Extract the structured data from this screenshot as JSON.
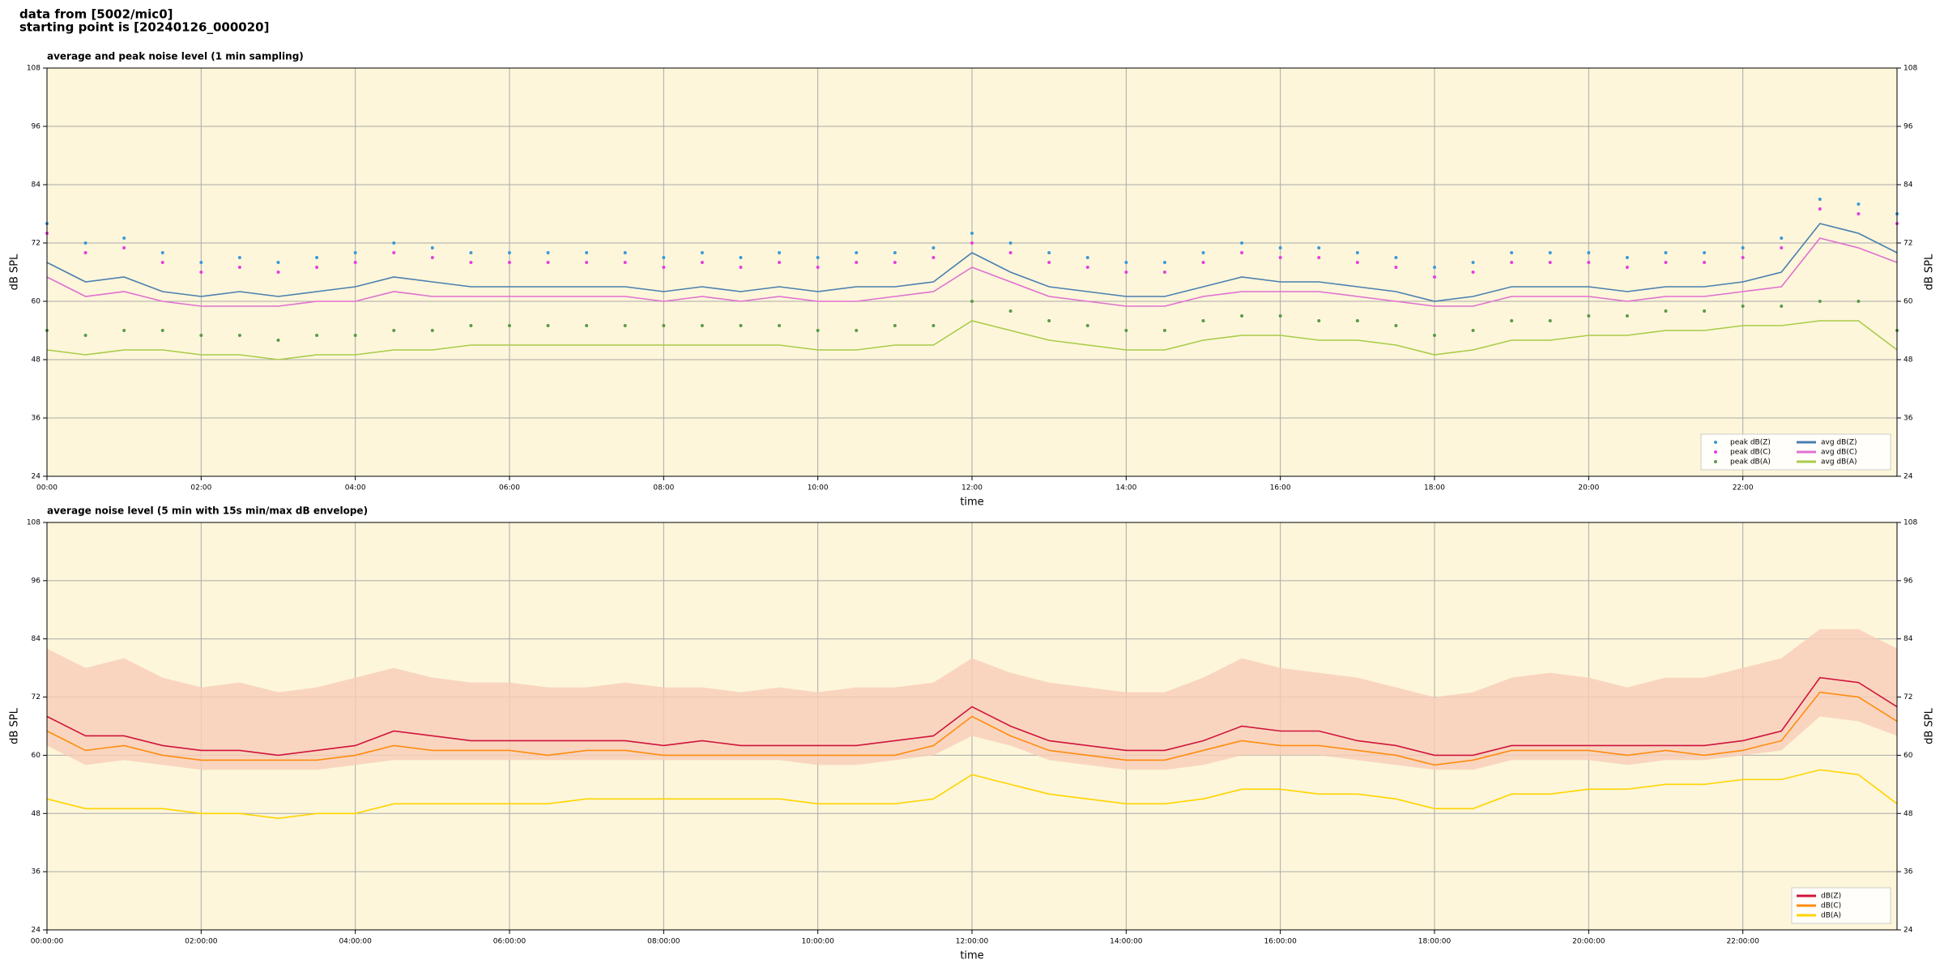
{
  "header": {
    "lines": [
      "data from [5002/mic0]",
      "starting point is [20240126_000020]"
    ]
  },
  "chart_data": [
    {
      "type": "line",
      "title": "average and peak noise level (1 min sampling)",
      "xlabel": "time",
      "ylabel": "dB SPL",
      "xlim": [
        0,
        24
      ],
      "ylim": [
        24,
        108
      ],
      "yticks": [
        24,
        36,
        48,
        60,
        72,
        84,
        96,
        108
      ],
      "xticks": [
        {
          "value": 0,
          "label": "00:00"
        },
        {
          "value": 2,
          "label": "02:00"
        },
        {
          "value": 4,
          "label": "04:00"
        },
        {
          "value": 6,
          "label": "06:00"
        },
        {
          "value": 8,
          "label": "08:00"
        },
        {
          "value": 10,
          "label": "10:00"
        },
        {
          "value": 12,
          "label": "12:00"
        },
        {
          "value": 14,
          "label": "14:00"
        },
        {
          "value": 16,
          "label": "16:00"
        },
        {
          "value": 18,
          "label": "18:00"
        },
        {
          "value": 20,
          "label": "20:00"
        },
        {
          "value": 22,
          "label": "22:00"
        }
      ],
      "grid": true,
      "legend": "lower right",
      "legend_columns": 2,
      "x": [
        0,
        0.5,
        1,
        1.5,
        2,
        2.5,
        3,
        3.5,
        4,
        4.5,
        5,
        5.5,
        6,
        6.5,
        7,
        7.5,
        8,
        8.5,
        9,
        9.5,
        10,
        10.5,
        11,
        11.5,
        12,
        12.5,
        13,
        13.5,
        14,
        14.5,
        15,
        15.5,
        16,
        16.5,
        17,
        17.5,
        18,
        18.5,
        19,
        19.5,
        20,
        20.5,
        21,
        21.5,
        22,
        22.5,
        23,
        23.5,
        24
      ],
      "series": [
        {
          "name": "peak dB(Z)",
          "color": "#3b9ad9",
          "marker": "dot",
          "values": [
            76,
            72,
            73,
            70,
            68,
            69,
            68,
            69,
            70,
            72,
            71,
            70,
            70,
            70,
            70,
            70,
            69,
            70,
            69,
            70,
            69,
            70,
            70,
            71,
            74,
            72,
            70,
            69,
            68,
            68,
            70,
            72,
            71,
            71,
            70,
            69,
            67,
            68,
            70,
            70,
            70,
            69,
            70,
            70,
            71,
            73,
            81,
            80,
            78
          ]
        },
        {
          "name": "peak dB(C)",
          "color": "#e83ee0",
          "marker": "dot",
          "values": [
            74,
            70,
            71,
            68,
            66,
            67,
            66,
            67,
            68,
            70,
            69,
            68,
            68,
            68,
            68,
            68,
            67,
            68,
            67,
            68,
            67,
            68,
            68,
            69,
            72,
            70,
            68,
            67,
            66,
            66,
            68,
            70,
            69,
            69,
            68,
            67,
            65,
            66,
            68,
            68,
            68,
            67,
            68,
            68,
            69,
            71,
            79,
            78,
            76
          ]
        },
        {
          "name": "peak dB(A)",
          "color": "#5a9a4a",
          "marker": "dot",
          "values": [
            54,
            53,
            54,
            54,
            53,
            53,
            52,
            53,
            53,
            54,
            54,
            55,
            55,
            55,
            55,
            55,
            55,
            55,
            55,
            55,
            54,
            54,
            55,
            55,
            60,
            58,
            56,
            55,
            54,
            54,
            56,
            57,
            57,
            56,
            56,
            55,
            53,
            54,
            56,
            56,
            57,
            57,
            58,
            58,
            59,
            59,
            60,
            60,
            54
          ]
        },
        {
          "name": "avg dB(Z)",
          "color": "#4a7fb0",
          "values": [
            68,
            64,
            65,
            62,
            61,
            62,
            61,
            62,
            63,
            65,
            64,
            63,
            63,
            63,
            63,
            63,
            62,
            63,
            62,
            63,
            62,
            63,
            63,
            64,
            70,
            66,
            63,
            62,
            61,
            61,
            63,
            65,
            64,
            64,
            63,
            62,
            60,
            61,
            63,
            63,
            63,
            62,
            63,
            63,
            64,
            66,
            76,
            74,
            70
          ]
        },
        {
          "name": "avg dB(C)",
          "color": "#e070d0",
          "values": [
            65,
            61,
            62,
            60,
            59,
            59,
            59,
            60,
            60,
            62,
            61,
            61,
            61,
            61,
            61,
            61,
            60,
            61,
            60,
            61,
            60,
            60,
            61,
            62,
            67,
            64,
            61,
            60,
            59,
            59,
            61,
            62,
            62,
            62,
            61,
            60,
            59,
            59,
            61,
            61,
            61,
            60,
            61,
            61,
            62,
            63,
            73,
            71,
            68
          ]
        },
        {
          "name": "avg dB(A)",
          "color": "#a8cc48",
          "values": [
            50,
            49,
            50,
            50,
            49,
            49,
            48,
            49,
            49,
            50,
            50,
            51,
            51,
            51,
            51,
            51,
            51,
            51,
            51,
            51,
            50,
            50,
            51,
            51,
            56,
            54,
            52,
            51,
            50,
            50,
            52,
            53,
            53,
            52,
            52,
            51,
            49,
            50,
            52,
            52,
            53,
            53,
            54,
            54,
            55,
            55,
            56,
            56,
            50
          ]
        }
      ]
    },
    {
      "type": "line",
      "title": "average noise level (5 min with 15s min/max dB envelope)",
      "xlabel": "time",
      "ylabel": "dB SPL",
      "xlim": [
        0,
        24
      ],
      "ylim": [
        24,
        108
      ],
      "yticks": [
        24,
        36,
        48,
        60,
        72,
        84,
        96,
        108
      ],
      "xticks": [
        {
          "value": 0,
          "label": "00:00:00"
        },
        {
          "value": 2,
          "label": "02:00:00"
        },
        {
          "value": 4,
          "label": "04:00:00"
        },
        {
          "value": 6,
          "label": "06:00:00"
        },
        {
          "value": 8,
          "label": "08:00:00"
        },
        {
          "value": 10,
          "label": "10:00:00"
        },
        {
          "value": 12,
          "label": "12:00:00"
        },
        {
          "value": 14,
          "label": "14:00:00"
        },
        {
          "value": 16,
          "label": "16:00:00"
        },
        {
          "value": 18,
          "label": "18:00:00"
        },
        {
          "value": 20,
          "label": "20:00:00"
        },
        {
          "value": 22,
          "label": "22:00:00"
        }
      ],
      "grid": true,
      "legend": "lower right",
      "legend_columns": 1,
      "x": [
        0,
        0.5,
        1,
        1.5,
        2,
        2.5,
        3,
        3.5,
        4,
        4.5,
        5,
        5.5,
        6,
        6.5,
        7,
        7.5,
        8,
        8.5,
        9,
        9.5,
        10,
        10.5,
        11,
        11.5,
        12,
        12.5,
        13,
        13.5,
        14,
        14.5,
        15,
        15.5,
        16,
        16.5,
        17,
        17.5,
        18,
        18.5,
        19,
        19.5,
        20,
        20.5,
        21,
        21.5,
        22,
        22.5,
        23,
        23.5,
        24
      ],
      "envelope": {
        "color": "#f7cdb8",
        "upper": [
          82,
          78,
          80,
          76,
          74,
          75,
          73,
          74,
          76,
          78,
          76,
          75,
          75,
          74,
          74,
          75,
          74,
          74,
          73,
          74,
          73,
          74,
          74,
          75,
          80,
          77,
          75,
          74,
          73,
          73,
          76,
          80,
          78,
          77,
          76,
          74,
          72,
          73,
          76,
          77,
          76,
          74,
          76,
          76,
          78,
          80,
          86,
          86,
          82
        ],
        "lower": [
          62,
          58,
          59,
          58,
          57,
          57,
          57,
          57,
          58,
          59,
          59,
          59,
          59,
          59,
          59,
          59,
          59,
          59,
          59,
          59,
          58,
          58,
          59,
          60,
          64,
          62,
          59,
          58,
          57,
          57,
          58,
          60,
          60,
          60,
          59,
          58,
          57,
          57,
          59,
          59,
          59,
          58,
          59,
          59,
          60,
          61,
          68,
          67,
          64
        ]
      },
      "series": [
        {
          "name": "dB(Z)",
          "color": "#d0143c",
          "values": [
            68,
            64,
            64,
            62,
            61,
            61,
            60,
            61,
            62,
            65,
            64,
            63,
            63,
            63,
            63,
            63,
            62,
            63,
            62,
            62,
            62,
            62,
            63,
            64,
            70,
            66,
            63,
            62,
            61,
            61,
            63,
            66,
            65,
            65,
            63,
            62,
            60,
            60,
            62,
            62,
            62,
            62,
            62,
            62,
            63,
            65,
            76,
            75,
            70
          ]
        },
        {
          "name": "dB(C)",
          "color": "#ff8c10",
          "values": [
            65,
            61,
            62,
            60,
            59,
            59,
            59,
            59,
            60,
            62,
            61,
            61,
            61,
            60,
            61,
            61,
            60,
            60,
            60,
            60,
            60,
            60,
            60,
            62,
            68,
            64,
            61,
            60,
            59,
            59,
            61,
            63,
            62,
            62,
            61,
            60,
            58,
            59,
            61,
            61,
            61,
            60,
            61,
            60,
            61,
            63,
            73,
            72,
            67
          ]
        },
        {
          "name": "dB(A)",
          "color": "#ffd400",
          "values": [
            51,
            49,
            49,
            49,
            48,
            48,
            47,
            48,
            48,
            50,
            50,
            50,
            50,
            50,
            51,
            51,
            51,
            51,
            51,
            51,
            50,
            50,
            50,
            51,
            56,
            54,
            52,
            51,
            50,
            50,
            51,
            53,
            53,
            52,
            52,
            51,
            49,
            49,
            52,
            52,
            53,
            53,
            54,
            54,
            55,
            55,
            57,
            56,
            50
          ]
        }
      ]
    }
  ]
}
